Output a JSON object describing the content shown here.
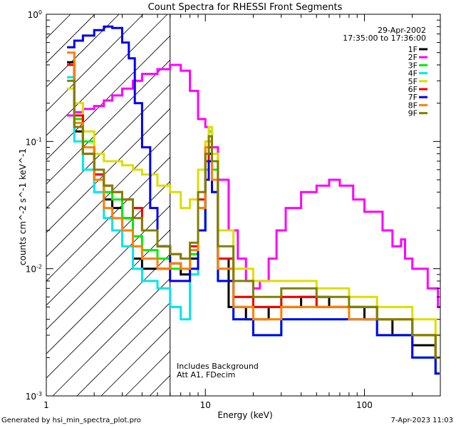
{
  "chart_data": {
    "type": "line",
    "title": "Count Spectra for RHESSI Front Segments",
    "xlabel": "Energy (keV)",
    "ylabel": "counts cm^-2 s^-1 keV^-1",
    "xscale": "log",
    "yscale": "log",
    "xlim": [
      1,
      300
    ],
    "ylim": [
      0.001,
      1
    ],
    "x_tick_labels": [
      "1",
      "10",
      "100"
    ],
    "y_tick_labels": [
      {
        "base": "10",
        "exp": "0",
        "value": 1
      },
      {
        "base": "10",
        "exp": "-1",
        "value": 0.1
      },
      {
        "base": "10",
        "exp": "-2",
        "value": 0.01
      },
      {
        "base": "10",
        "exp": "-3",
        "value": 0.001
      }
    ],
    "date": "29-Apr-2002",
    "time_range": "17:35:00 to 17:36:00",
    "threshold_energy_keV": 6,
    "annotation_line1": "Includes Background",
    "annotation_line2": "Att A1, FDecim",
    "series": [
      {
        "name": "1F",
        "color": "#000000",
        "points": [
          [
            1.35,
            0.42
          ],
          [
            1.5,
            0.12
          ],
          [
            1.7,
            0.08
          ],
          [
            2.0,
            0.05
          ],
          [
            2.3,
            0.035
          ],
          [
            2.6,
            0.03
          ],
          [
            3.0,
            0.025
          ],
          [
            3.5,
            0.012
          ],
          [
            4.0,
            0.01
          ],
          [
            5.0,
            0.01
          ],
          [
            6.0,
            0.011
          ],
          [
            7.0,
            0.009
          ],
          [
            8.0,
            0.012
          ],
          [
            9.0,
            0.02
          ],
          [
            10.0,
            0.06
          ],
          [
            10.5,
            0.08
          ],
          [
            11.0,
            0.05
          ],
          [
            12.0,
            0.012
          ],
          [
            14.0,
            0.005
          ],
          [
            18.0,
            0.004
          ],
          [
            25.0,
            0.005
          ],
          [
            40.0,
            0.006
          ],
          [
            60.0,
            0.005
          ],
          [
            100.0,
            0.004
          ],
          [
            150.0,
            0.003
          ],
          [
            200.0,
            0.0025
          ],
          [
            280.0,
            0.0015
          ]
        ]
      },
      {
        "name": "2F",
        "color": "#ff00ff",
        "points": [
          [
            1.35,
            0.16
          ],
          [
            1.5,
            0.17
          ],
          [
            1.7,
            0.18
          ],
          [
            2.0,
            0.19
          ],
          [
            2.3,
            0.21
          ],
          [
            2.6,
            0.23
          ],
          [
            3.0,
            0.26
          ],
          [
            3.5,
            0.3
          ],
          [
            4.0,
            0.34
          ],
          [
            5.0,
            0.37
          ],
          [
            6.0,
            0.4
          ],
          [
            7.0,
            0.36
          ],
          [
            8.0,
            0.25
          ],
          [
            9.0,
            0.15
          ],
          [
            10.0,
            0.13
          ],
          [
            11.0,
            0.09
          ],
          [
            12.0,
            0.05
          ],
          [
            14.0,
            0.02
          ],
          [
            16.0,
            0.012
          ],
          [
            18.0,
            0.008
          ],
          [
            20.0,
            0.007
          ],
          [
            22.0,
            0.008
          ],
          [
            25.0,
            0.012
          ],
          [
            28.0,
            0.02
          ],
          [
            32.0,
            0.03
          ],
          [
            40.0,
            0.04
          ],
          [
            50.0,
            0.045
          ],
          [
            60.0,
            0.05
          ],
          [
            70.0,
            0.045
          ],
          [
            85.0,
            0.035
          ],
          [
            100.0,
            0.028
          ],
          [
            130.0,
            0.02
          ],
          [
            150.0,
            0.015
          ],
          [
            170.0,
            0.017
          ],
          [
            180.0,
            0.012
          ],
          [
            200.0,
            0.01
          ],
          [
            250.0,
            0.007
          ],
          [
            290.0,
            0.005
          ]
        ]
      },
      {
        "name": "3F",
        "color": "#00ee00",
        "points": [
          [
            1.35,
            0.4
          ],
          [
            1.5,
            0.15
          ],
          [
            1.7,
            0.1
          ],
          [
            2.0,
            0.055
          ],
          [
            2.3,
            0.04
          ],
          [
            2.6,
            0.035
          ],
          [
            3.0,
            0.025
          ],
          [
            3.5,
            0.018
          ],
          [
            4.0,
            0.014
          ],
          [
            5.0,
            0.012
          ],
          [
            6.0,
            0.01
          ],
          [
            7.0,
            0.01
          ],
          [
            8.0,
            0.013
          ],
          [
            9.0,
            0.03
          ],
          [
            10.0,
            0.08
          ],
          [
            10.5,
            0.12
          ],
          [
            11.0,
            0.06
          ],
          [
            12.0,
            0.01
          ],
          [
            15.0,
            0.006
          ],
          [
            20.0,
            0.005
          ],
          [
            30.0,
            0.006
          ],
          [
            50.0,
            0.005
          ],
          [
            80.0,
            0.005
          ],
          [
            120.0,
            0.004
          ],
          [
            200.0,
            0.003
          ],
          [
            280.0,
            0.002
          ]
        ]
      },
      {
        "name": "4F",
        "color": "#00e5ee",
        "points": [
          [
            1.35,
            0.32
          ],
          [
            1.5,
            0.1
          ],
          [
            1.7,
            0.06
          ],
          [
            2.0,
            0.04
          ],
          [
            2.3,
            0.025
          ],
          [
            2.6,
            0.02
          ],
          [
            3.0,
            0.015
          ],
          [
            3.5,
            0.01
          ],
          [
            4.0,
            0.008
          ],
          [
            5.0,
            0.007
          ],
          [
            6.0,
            0.005
          ],
          [
            7.0,
            0.004
          ],
          [
            8.0,
            0.009
          ],
          [
            9.0,
            0.02
          ],
          [
            10.0,
            0.06
          ],
          [
            10.5,
            0.1
          ],
          [
            11.0,
            0.04
          ],
          [
            12.0,
            0.008
          ],
          [
            15.0,
            0.004
          ],
          [
            20.0,
            0.003
          ],
          [
            30.0,
            0.004
          ],
          [
            50.0,
            0.004
          ],
          [
            80.0,
            0.004
          ],
          [
            120.0,
            0.003
          ],
          [
            200.0,
            0.002
          ],
          [
            280.0,
            0.0015
          ]
        ]
      },
      {
        "name": "5F",
        "color": "#dddd00",
        "points": [
          [
            1.35,
            0.26
          ],
          [
            1.5,
            0.2
          ],
          [
            1.7,
            0.12
          ],
          [
            2.0,
            0.08
          ],
          [
            2.3,
            0.07
          ],
          [
            2.6,
            0.07
          ],
          [
            3.0,
            0.065
          ],
          [
            3.5,
            0.06
          ],
          [
            4.0,
            0.055
          ],
          [
            5.0,
            0.045
          ],
          [
            6.0,
            0.04
          ],
          [
            7.0,
            0.03
          ],
          [
            8.0,
            0.035
          ],
          [
            9.0,
            0.06
          ],
          [
            10.0,
            0.1
          ],
          [
            10.5,
            0.13
          ],
          [
            11.0,
            0.08
          ],
          [
            12.0,
            0.02
          ],
          [
            15.0,
            0.01
          ],
          [
            20.0,
            0.008
          ],
          [
            30.0,
            0.008
          ],
          [
            50.0,
            0.007
          ],
          [
            80.0,
            0.006
          ],
          [
            120.0,
            0.005
          ],
          [
            200.0,
            0.004
          ],
          [
            280.0,
            0.003
          ]
        ]
      },
      {
        "name": "6F",
        "color": "#ee0000",
        "points": [
          [
            1.35,
            0.4
          ],
          [
            1.5,
            0.16
          ],
          [
            1.7,
            0.09
          ],
          [
            2.0,
            0.055
          ],
          [
            2.3,
            0.045
          ],
          [
            2.6,
            0.04
          ],
          [
            3.0,
            0.035
          ],
          [
            3.5,
            0.03
          ],
          [
            4.0,
            0.02
          ],
          [
            5.0,
            0.015
          ],
          [
            6.0,
            0.013
          ],
          [
            7.0,
            0.012
          ],
          [
            8.0,
            0.015
          ],
          [
            9.0,
            0.035
          ],
          [
            10.0,
            0.07
          ],
          [
            10.5,
            0.09
          ],
          [
            11.0,
            0.05
          ],
          [
            12.0,
            0.012
          ],
          [
            15.0,
            0.006
          ],
          [
            20.0,
            0.005
          ],
          [
            30.0,
            0.006
          ],
          [
            50.0,
            0.005
          ],
          [
            80.0,
            0.005
          ],
          [
            120.0,
            0.004
          ],
          [
            200.0,
            0.003
          ],
          [
            280.0,
            0.002
          ]
        ]
      },
      {
        "name": "7F",
        "color": "#0000ee",
        "points": [
          [
            1.35,
            0.55
          ],
          [
            1.5,
            0.62
          ],
          [
            1.7,
            0.68
          ],
          [
            2.0,
            0.75
          ],
          [
            2.3,
            0.8
          ],
          [
            2.6,
            0.78
          ],
          [
            3.0,
            0.6
          ],
          [
            3.3,
            0.45
          ],
          [
            3.6,
            0.2
          ],
          [
            4.0,
            0.09
          ],
          [
            4.5,
            0.03
          ],
          [
            5.0,
            0.015
          ],
          [
            6.0,
            0.008
          ],
          [
            7.0,
            0.008
          ],
          [
            8.0,
            0.01
          ],
          [
            9.0,
            0.02
          ],
          [
            10.0,
            0.05
          ],
          [
            10.5,
            0.07
          ],
          [
            11.0,
            0.04
          ],
          [
            12.0,
            0.008
          ],
          [
            15.0,
            0.004
          ],
          [
            20.0,
            0.003
          ],
          [
            30.0,
            0.004
          ],
          [
            50.0,
            0.004
          ],
          [
            80.0,
            0.004
          ],
          [
            120.0,
            0.003
          ],
          [
            200.0,
            0.002
          ],
          [
            280.0,
            0.0015
          ]
        ]
      },
      {
        "name": "8F",
        "color": "#ff7f00",
        "points": [
          [
            1.35,
            0.5
          ],
          [
            1.5,
            0.14
          ],
          [
            1.7,
            0.09
          ],
          [
            2.0,
            0.05
          ],
          [
            2.3,
            0.03
          ],
          [
            2.6,
            0.025
          ],
          [
            3.0,
            0.02
          ],
          [
            3.5,
            0.015
          ],
          [
            4.0,
            0.012
          ],
          [
            5.0,
            0.01
          ],
          [
            6.0,
            0.011
          ],
          [
            7.0,
            0.01
          ],
          [
            8.0,
            0.014
          ],
          [
            9.0,
            0.03
          ],
          [
            10.0,
            0.09
          ],
          [
            10.5,
            0.1
          ],
          [
            11.0,
            0.05
          ],
          [
            12.0,
            0.01
          ],
          [
            15.0,
            0.005
          ],
          [
            20.0,
            0.004
          ],
          [
            30.0,
            0.005
          ],
          [
            50.0,
            0.005
          ],
          [
            80.0,
            0.004
          ],
          [
            120.0,
            0.004
          ],
          [
            200.0,
            0.003
          ],
          [
            280.0,
            0.002
          ]
        ]
      },
      {
        "name": "9F",
        "color": "#808000",
        "points": [
          [
            1.35,
            0.3
          ],
          [
            1.5,
            0.13
          ],
          [
            1.7,
            0.08
          ],
          [
            2.0,
            0.06
          ],
          [
            2.3,
            0.045
          ],
          [
            2.6,
            0.04
          ],
          [
            3.0,
            0.035
          ],
          [
            3.5,
            0.025
          ],
          [
            4.0,
            0.02
          ],
          [
            5.0,
            0.015
          ],
          [
            6.0,
            0.013
          ],
          [
            7.0,
            0.012
          ],
          [
            8.0,
            0.016
          ],
          [
            9.0,
            0.04
          ],
          [
            10.0,
            0.08
          ],
          [
            10.5,
            0.11
          ],
          [
            11.0,
            0.07
          ],
          [
            12.0,
            0.015
          ],
          [
            15.0,
            0.008
          ],
          [
            20.0,
            0.006
          ],
          [
            30.0,
            0.007
          ],
          [
            50.0,
            0.006
          ],
          [
            80.0,
            0.005
          ],
          [
            120.0,
            0.004
          ],
          [
            200.0,
            0.003
          ],
          [
            280.0,
            0.002
          ]
        ]
      }
    ]
  },
  "footer": {
    "generated_by": "Generated by hsi_min_spectra_plot.pro",
    "timestamp": "7-Apr-2023 11:03"
  }
}
